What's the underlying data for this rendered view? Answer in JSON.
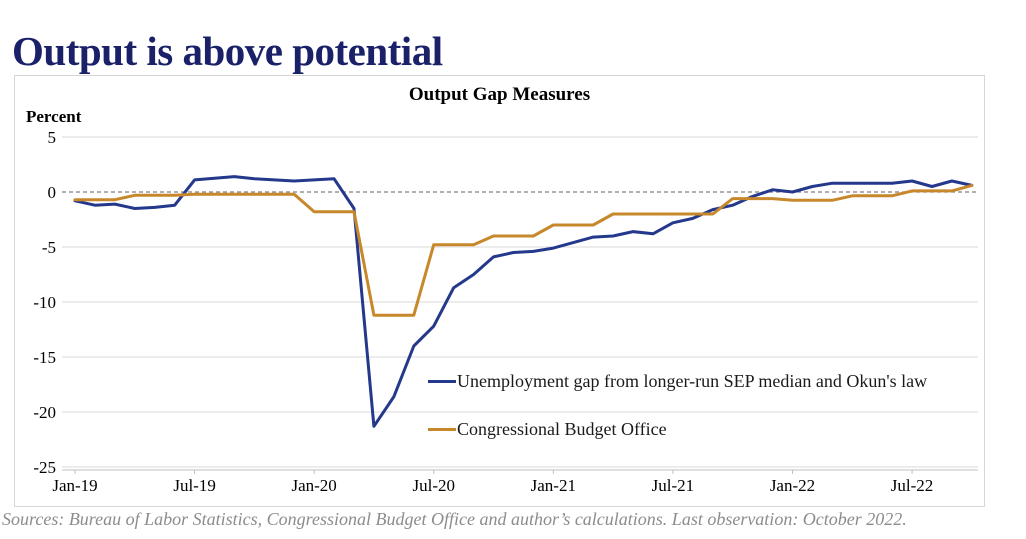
{
  "page": {
    "title": "Output is above potential"
  },
  "footer": {
    "source": "Sources: Bureau of Labor Statistics, Congressional Budget Office and author’s calculations. Last observation: October 2022."
  },
  "colors": {
    "title_navy": "#1a2169",
    "unemployment_line": "#24388c",
    "cbo_line": "#c7882c",
    "gridline": "#d9d9d9",
    "zero_line": "#7f7f7f",
    "axis_line": "#bfbfbf",
    "source_gray": "#8c8c8c"
  },
  "chart_data": {
    "type": "line",
    "title": "Output Gap Measures",
    "ylabel": "Percent",
    "xlabel": "",
    "ylim": [
      -25,
      5
    ],
    "grid": true,
    "zero_reference_line": "dashed gray at 0",
    "legend_position": "inside lower-right of plot",
    "x_unit": "monthly, Jan-2019 through Oct-2022 (46 points)",
    "x_ticks": [
      {
        "label": "Jan-19",
        "m": 0
      },
      {
        "label": "Jul-19",
        "m": 6
      },
      {
        "label": "Jan-20",
        "m": 12
      },
      {
        "label": "Jul-20",
        "m": 18
      },
      {
        "label": "Jan-21",
        "m": 24
      },
      {
        "label": "Jul-21",
        "m": 30
      },
      {
        "label": "Jan-22",
        "m": 36
      },
      {
        "label": "Jul-22",
        "m": 42
      }
    ],
    "y_ticks": [
      5,
      0,
      -5,
      -10,
      -15,
      -20,
      -25
    ],
    "series": [
      {
        "name": "Unemployment gap from longer-run SEP median and Okun's law",
        "color": "#24388c",
        "values": [
          -0.8,
          -1.2,
          -1.1,
          -1.5,
          -1.4,
          -1.2,
          1.1,
          1.25,
          1.4,
          1.2,
          1.1,
          1.0,
          1.1,
          1.2,
          -1.5,
          -21.3,
          -18.6,
          -14.0,
          -12.2,
          -8.7,
          -7.5,
          -5.9,
          -5.5,
          -5.4,
          -5.1,
          -4.6,
          -4.1,
          -4.0,
          -3.6,
          -3.8,
          -2.8,
          -2.4,
          -1.6,
          -1.2,
          -0.4,
          0.2,
          0.0,
          0.5,
          0.8,
          0.8,
          0.8,
          0.8,
          1.0,
          0.5,
          1.0,
          0.6
        ]
      },
      {
        "name": "Congressional Budget Office",
        "color": "#c7882c",
        "quarterly_values": {
          "2019": [
            -0.7,
            -0.3,
            -0.2,
            -0.2
          ],
          "2020": [
            -1.8,
            -11.2,
            -4.8,
            -4.0
          ],
          "2021": [
            -3.0,
            -2.0,
            -2.0,
            -0.6
          ],
          "2022": [
            -0.75,
            -0.35,
            0.1,
            0.6
          ]
        },
        "values": [
          -0.7,
          -0.7,
          -0.7,
          -0.3,
          -0.3,
          -0.3,
          -0.2,
          -0.2,
          -0.2,
          -0.2,
          -0.2,
          -0.2,
          -1.8,
          -1.8,
          -1.8,
          -11.2,
          -11.2,
          -11.2,
          -4.8,
          -4.8,
          -4.8,
          -4.0,
          -4.0,
          -4.0,
          -3.0,
          -3.0,
          -3.0,
          -2.0,
          -2.0,
          -2.0,
          -2.0,
          -2.0,
          -2.0,
          -0.6,
          -0.6,
          -0.6,
          -0.75,
          -0.75,
          -0.75,
          -0.35,
          -0.35,
          -0.35,
          0.1,
          0.1,
          0.1,
          0.6
        ]
      }
    ]
  }
}
